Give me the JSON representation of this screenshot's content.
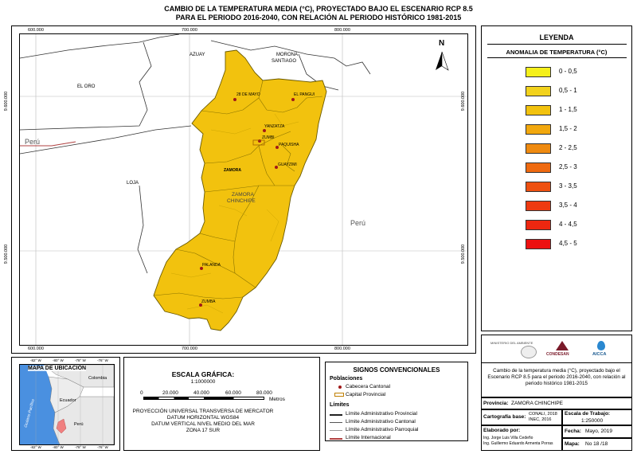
{
  "title": {
    "line1": "CAMBIO DE LA TEMPERATURA MEDIA (°C),  PROYECTADO BAJO EL ESCENARIO RCP 8.5",
    "line2": "PARA EL PERIODO 2016-2040, CON RELACIÓN AL PERIODO HISTÓRICO 1981-2015"
  },
  "grid": {
    "x_labels": [
      "600.000",
      "700.000",
      "800.000"
    ],
    "y_labels": [
      "9.600.000",
      "9.500.000"
    ]
  },
  "map": {
    "north_label": "N",
    "regions": {
      "azuay": "AZUAY",
      "morona_1": "MORONA",
      "morona_2": "SANTIAGO",
      "el_oro": "EL ORO",
      "peru_left": "Perú",
      "loja": "LOJA",
      "peru_right": "Perú",
      "zamora_1": "ZAMORA",
      "zamora_2": "CHINCHIPE"
    },
    "cantons": [
      {
        "name": "28 DE MAYO"
      },
      {
        "name": "EL PANGUI"
      },
      {
        "name": "YANZATZA"
      },
      {
        "name": "ZUMBI"
      },
      {
        "name": "PAQUISHA"
      },
      {
        "name": "GUAYZIMI"
      },
      {
        "name": "ZAMORA"
      },
      {
        "name": "PALANDA"
      },
      {
        "name": "ZUMBA"
      }
    ]
  },
  "legend": {
    "heading": "LEYENDA",
    "subheading": "ANOMALIA DE TEMPERATURA (°C)",
    "items": [
      {
        "label": "0 - 0,5",
        "color": "#f5f01a"
      },
      {
        "label": "0,5 - 1",
        "color": "#f2d21c"
      },
      {
        "label": "1 - 1,5",
        "color": "#f2c20e"
      },
      {
        "label": "1,5 - 2",
        "color": "#f2a80e"
      },
      {
        "label": "2 - 2,5",
        "color": "#ef8a10"
      },
      {
        "label": "2,5 - 3",
        "color": "#ef6a10"
      },
      {
        "label": "3 - 3,5",
        "color": "#ee5010"
      },
      {
        "label": "3,5 - 4",
        "color": "#ee3a10"
      },
      {
        "label": "4 - 4,5",
        "color": "#ed2710"
      },
      {
        "label": "4,5 - 5",
        "color": "#ec1010"
      }
    ]
  },
  "location_map": {
    "title": "MAPA DE UBICACIÓN",
    "lon_labels": [
      "-82° W",
      "-80° W",
      "-78° W",
      "-76° W"
    ],
    "colombia": "Colombia",
    "ecuador": "Ecuador",
    "peru": "Perú",
    "ocean": "Océano Pacífico"
  },
  "scale": {
    "title": "ESCALA GRÁFICA:",
    "ratio": "1:1000000",
    "ticks": [
      "0",
      "20.000",
      "40.000",
      "60.000",
      "80.000"
    ],
    "unit": "Metros",
    "proj1": "PROYECCIÓN UNIVERSAL TRANSVERSA DE MERCATOR",
    "proj2": "DATUM HORIZONTAL WGS84",
    "proj3": "DATUM VERTICAL NIVEL MEDIO DEL MAR",
    "proj4": "ZONA 17 SUR"
  },
  "signs": {
    "title": "SIGNOS CONVENCIONALES",
    "poblaciones": "Poblaciones",
    "cabecera": "Cabecera Cantonal",
    "capital": "Capital Provincial",
    "limites": "Límites",
    "lim1": "Límite Administrativo Provincial",
    "lim2": "Límite Administrativo Cantonal",
    "lim3": "Límite Administrativo Parroquial",
    "lim4": "Límite Internacional"
  },
  "info": {
    "logo1": "MINISTERIO DEL AMBIENTE",
    "logo2": "CONDESAN",
    "logo3": "AICCA",
    "description": "Cambio de la temperatura media (°C),  proyectado bajo el Escenario RCP 8.5 para el periodo 2016-2040, con relación al periodo histórico 1981-2015",
    "provincia_label": "Provincia:",
    "provincia_value": "ZAMORA CHINCHIPE",
    "cart_label": "Cartografía base:",
    "cart_value1": "CONALI, 2018",
    "cart_value2": "INEC, 2016",
    "escala_label": "Escala de Trabajo:",
    "escala_value": "1:250000",
    "elaborado_label": "Elaborado por:",
    "elaborado1": "Ing. Jorge Luis Villa Cedeño",
    "elaborado2": "Ing. Guillermo Eduardo Armenta Porras",
    "fecha_label": "Fecha:",
    "fecha_value": "Mayo, 2019",
    "mapa_label": "Mapa:",
    "mapa_value": "No 18 /18"
  }
}
